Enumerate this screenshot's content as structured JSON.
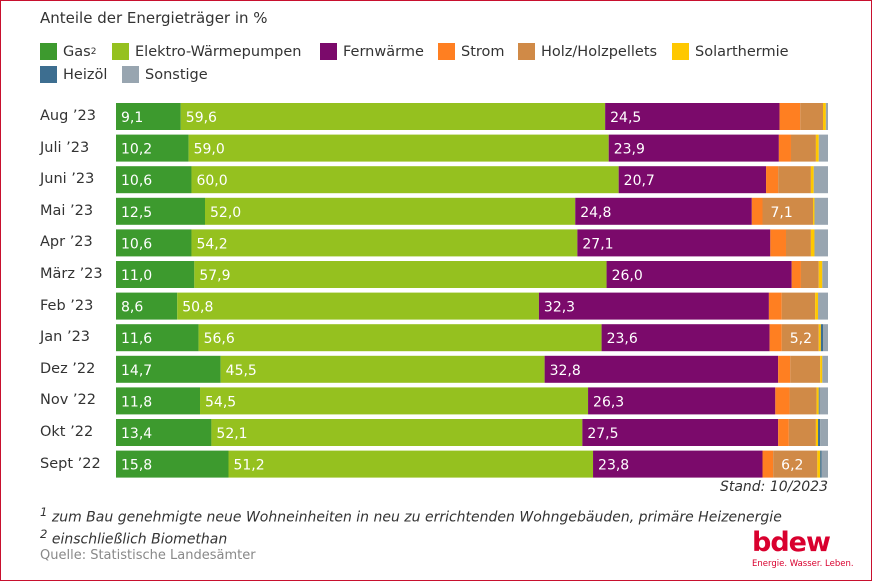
{
  "chart_data": {
    "type": "bar",
    "orientation": "horizontal",
    "stacked": true,
    "title": "Anteile der Energieträger in %",
    "xlim": [
      0,
      100
    ],
    "legend_position": "top",
    "series": [
      {
        "name": "Gas",
        "sup": "2",
        "color": "#3d9a2e"
      },
      {
        "name": "Elektro-Wärmepumpen",
        "color": "#95c11f"
      },
      {
        "name": "Fernwärme",
        "color": "#7b0a6b"
      },
      {
        "name": "Strom",
        "color": "#ff7f21"
      },
      {
        "name": "Holz/Holzpellets",
        "color": "#d08a47"
      },
      {
        "name": "Solarthermie",
        "color": "#ffc800"
      },
      {
        "name": "Heizöl",
        "color": "#3d6e90"
      },
      {
        "name": "Sonstige",
        "color": "#98a5b0"
      }
    ],
    "categories": [
      "Aug ’23",
      "Juli ’23",
      "Juni ’23",
      "Mai ’23",
      "Apr ’23",
      "März ’23",
      "Feb ’23",
      "Jan ’23",
      "Dez ’22",
      "Nov ’22",
      "Okt ’22",
      "Sept ’22"
    ],
    "values": [
      [
        9.1,
        59.6,
        24.5,
        2.9,
        3.2,
        0.4,
        0.0,
        0.3
      ],
      [
        10.2,
        59.0,
        23.9,
        1.7,
        3.5,
        0.4,
        0.0,
        1.3
      ],
      [
        10.6,
        60.0,
        20.7,
        1.7,
        4.6,
        0.4,
        0.0,
        2.0
      ],
      [
        12.5,
        52.0,
        24.8,
        1.5,
        7.1,
        0.2,
        0.0,
        1.9
      ],
      [
        10.6,
        54.2,
        27.1,
        2.2,
        3.5,
        0.5,
        0.0,
        1.9
      ],
      [
        11.0,
        57.9,
        26.0,
        1.3,
        2.5,
        0.5,
        0.0,
        0.8
      ],
      [
        8.6,
        50.8,
        32.3,
        1.8,
        4.7,
        0.4,
        0.0,
        1.4
      ],
      [
        11.6,
        56.6,
        23.6,
        1.7,
        5.2,
        0.3,
        0.3,
        0.7
      ],
      [
        14.7,
        45.5,
        32.8,
        1.7,
        4.2,
        0.3,
        0.0,
        0.8
      ],
      [
        11.8,
        54.5,
        26.3,
        2.0,
        3.8,
        0.3,
        0.1,
        1.2
      ],
      [
        13.4,
        52.1,
        27.5,
        1.5,
        3.8,
        0.3,
        0.3,
        1.1
      ],
      [
        15.8,
        51.2,
        23.8,
        1.5,
        6.2,
        0.4,
        0.2,
        0.9
      ]
    ],
    "data_labels": [
      [
        "9,1",
        "59,6",
        "24,5",
        null,
        null,
        null,
        null,
        null
      ],
      [
        "10,2",
        "59,0",
        "23,9",
        null,
        null,
        null,
        null,
        null
      ],
      [
        "10,6",
        "60,0",
        "20,7",
        null,
        null,
        null,
        null,
        null
      ],
      [
        "12,5",
        "52,0",
        "24,8",
        null,
        "7,1",
        null,
        null,
        null
      ],
      [
        "10,6",
        "54,2",
        "27,1",
        null,
        null,
        null,
        null,
        null
      ],
      [
        "11,0",
        "57,9",
        "26,0",
        null,
        null,
        null,
        null,
        null
      ],
      [
        "8,6",
        "50,8",
        "32,3",
        null,
        null,
        null,
        null,
        null
      ],
      [
        "11,6",
        "56,6",
        "23,6",
        null,
        "5,2",
        null,
        null,
        null
      ],
      [
        "14,7",
        "45,5",
        "32,8",
        null,
        null,
        null,
        null,
        null
      ],
      [
        "11,8",
        "54,5",
        "26,3",
        null,
        null,
        null,
        null,
        null
      ],
      [
        "13,4",
        "52,1",
        "27,5",
        null,
        null,
        null,
        null,
        null
      ],
      [
        "15,8",
        "51,2",
        "23,8",
        null,
        "6,2",
        null,
        null,
        null
      ]
    ]
  },
  "stand": "Stand: 10/2023",
  "footnotes": [
    {
      "mark": "1",
      "text": " zum Bau genehmigte neue Wohneinheiten in neu zu errichtenden Wohngebäuden, primäre Heizenergie"
    },
    {
      "mark": "2",
      "text": " einschließlich Biomethan"
    }
  ],
  "source": "Quelle: Statistische Landesämter",
  "logo": {
    "text": "bdew",
    "slogan": "Energie. Wasser. Leben."
  }
}
